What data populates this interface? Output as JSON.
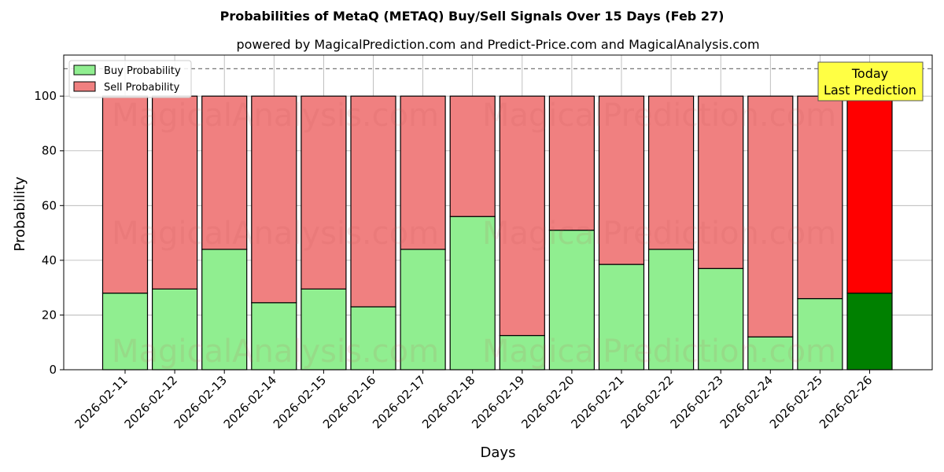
{
  "chart_data": {
    "type": "bar",
    "stacked": true,
    "title": "Probabilities of MetaQ (METAQ) Buy/Sell Signals Over 15 Days (Feb 27)",
    "subtitle": "powered by MagicalPrediction.com and Predict-Price.com and MagicalAnalysis.com",
    "xlabel": "Days",
    "ylabel": "Probability",
    "ylim": [
      0,
      115
    ],
    "yticks": [
      0,
      20,
      40,
      60,
      80,
      100
    ],
    "grid": true,
    "legend_position": "top-left",
    "categories": [
      "2026-02-11",
      "2026-02-12",
      "2026-02-13",
      "2026-02-14",
      "2026-02-15",
      "2026-02-16",
      "2026-02-17",
      "2026-02-18",
      "2026-02-19",
      "2026-02-20",
      "2026-02-21",
      "2026-02-22",
      "2026-02-23",
      "2026-02-24",
      "2026-02-25",
      "2026-02-26"
    ],
    "series": [
      {
        "name": "Buy Probability",
        "color": "#90ee90",
        "highlight_color": "#008000",
        "values": [
          28,
          29.5,
          44,
          24.5,
          29.5,
          23,
          44,
          56,
          12.5,
          51,
          38.5,
          44,
          37,
          12,
          26,
          28
        ]
      },
      {
        "name": "Sell Probability",
        "color": "#f08080",
        "highlight_color": "#ff0000",
        "values": [
          72,
          70.5,
          56,
          75.5,
          70.5,
          77,
          56,
          44,
          87.5,
          49,
          61.5,
          56,
          63,
          88,
          74,
          72
        ]
      }
    ],
    "reference_line": 110,
    "highlight_index": 15,
    "annotation": {
      "line1": "Today",
      "line2": "Last Prediction",
      "color": "#ffff44"
    },
    "watermarks": [
      "MagicalAnalysis.com",
      "MagicalPrediction.com"
    ]
  }
}
